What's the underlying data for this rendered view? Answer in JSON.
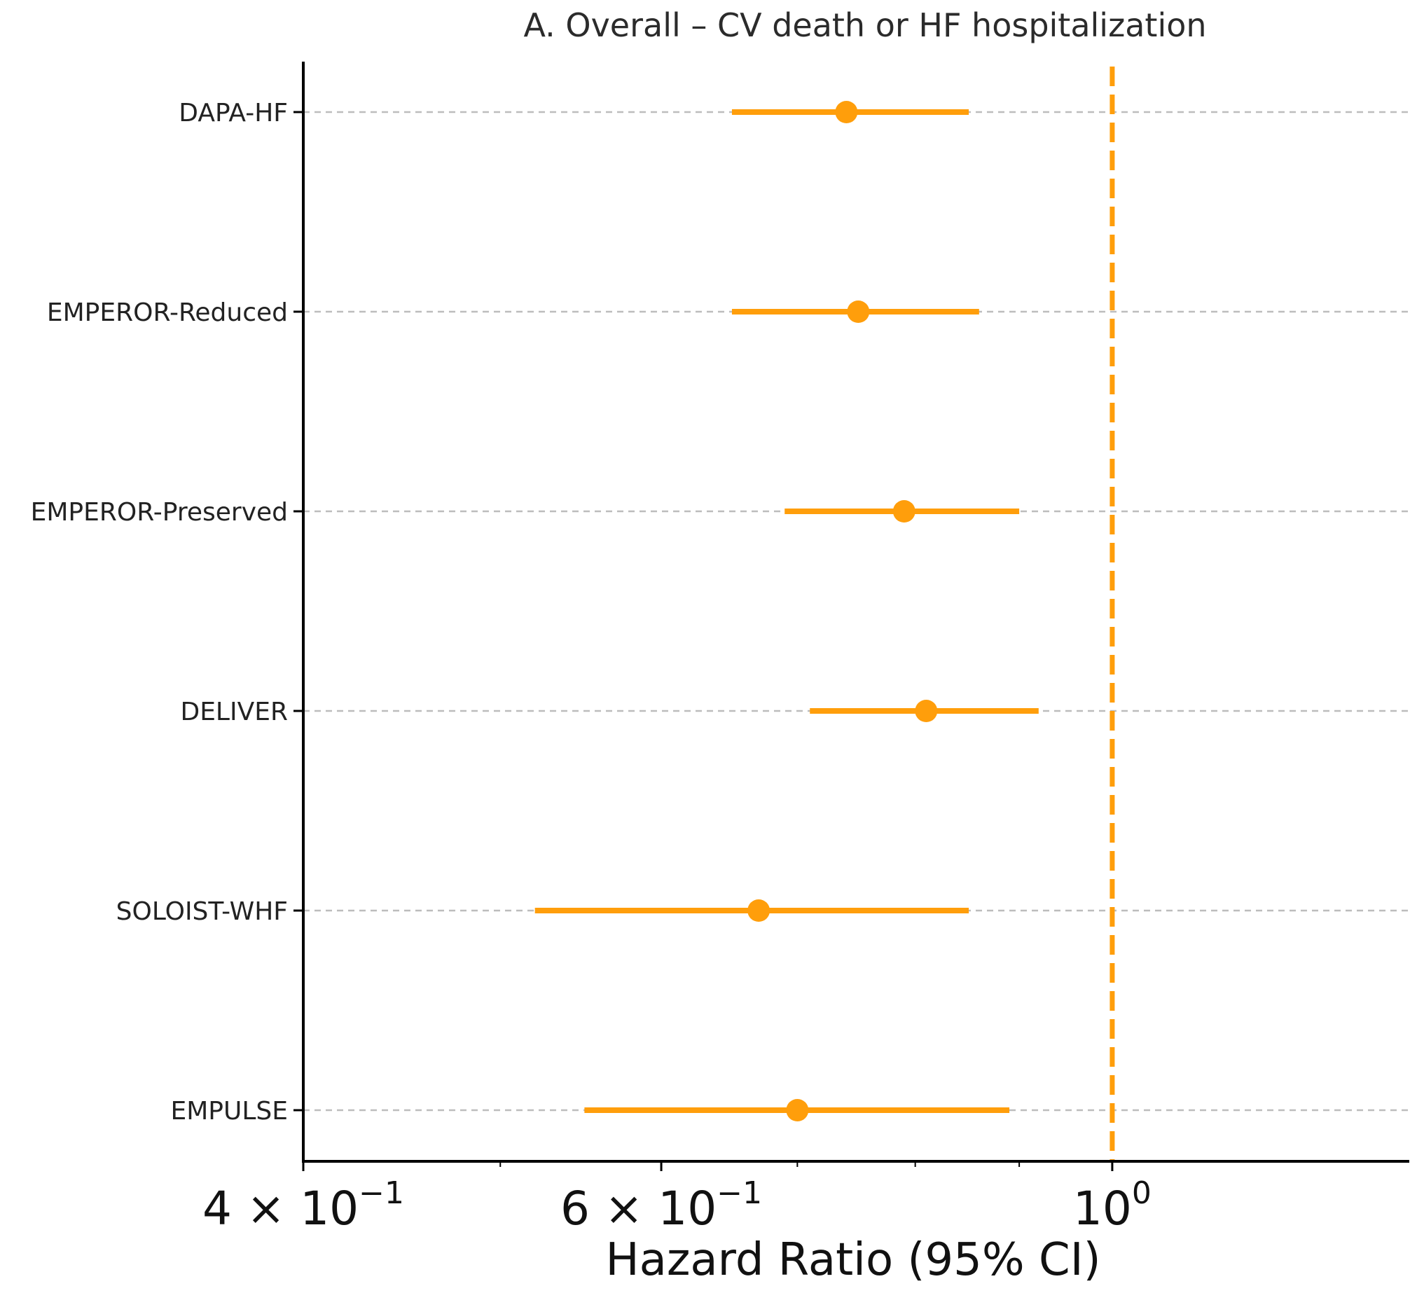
{
  "chart_data": {
    "type": "forest",
    "title": "A. Overall – CV death or HF hospitalization",
    "xlabel": "Hazard Ratio (95% CI)",
    "ylabel": "",
    "xscale": "log",
    "xlim": [
      0.4,
      1.4
    ],
    "reference_line": 1.0,
    "grid": "horizontal dashed",
    "color": "#FF9E0B",
    "xticks": [
      {
        "value": 0.4,
        "base": "4 × 10",
        "exp": "−1"
      },
      {
        "value": 0.6,
        "base": "6 × 10",
        "exp": "−1"
      },
      {
        "value": 1.0,
        "base": "10",
        "exp": "0"
      }
    ],
    "minor_ticks": [
      0.5,
      0.7,
      0.8,
      0.9
    ],
    "studies": [
      {
        "name": "DAPA-HF",
        "hr": 0.74,
        "lo": 0.65,
        "hi": 0.85
      },
      {
        "name": "EMPEROR-Reduced",
        "hr": 0.75,
        "lo": 0.65,
        "hi": 0.86
      },
      {
        "name": "EMPEROR-Preserved",
        "hr": 0.79,
        "lo": 0.69,
        "hi": 0.9
      },
      {
        "name": "DELIVER",
        "hr": 0.81,
        "lo": 0.71,
        "hi": 0.92
      },
      {
        "name": "SOLOIST-WHF",
        "hr": 0.67,
        "lo": 0.52,
        "hi": 0.85
      },
      {
        "name": "EMPULSE",
        "hr": 0.7,
        "lo": 0.55,
        "hi": 0.89
      }
    ]
  }
}
